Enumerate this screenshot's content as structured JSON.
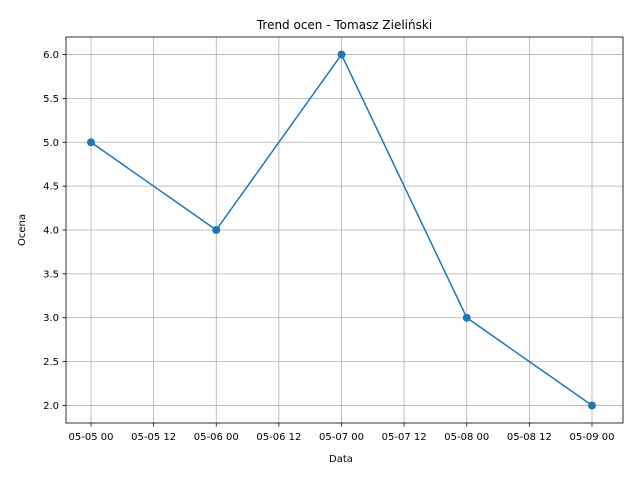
{
  "chart_data": {
    "type": "line",
    "title": "Trend ocen - Tomasz Zieliński",
    "xlabel": "Data",
    "ylabel": "Ocena",
    "x_tick_labels": [
      "05-05 00",
      "05-05 12",
      "05-06 00",
      "05-06 12",
      "05-07 00",
      "05-07 12",
      "05-08 00",
      "05-08 12",
      "05-09 00"
    ],
    "y_ticks": [
      2.0,
      2.5,
      3.0,
      3.5,
      4.0,
      4.5,
      5.0,
      5.5,
      6.0
    ],
    "y_tick_labels": [
      "2.0",
      "2.5",
      "3.0",
      "3.5",
      "4.0",
      "4.5",
      "5.0",
      "5.5",
      "6.0"
    ],
    "ylim": [
      1.8,
      6.2
    ],
    "grid": true,
    "series": [
      {
        "color": "#1f77b4",
        "marker": "circle",
        "x": [
          "05-05 00",
          "05-06 00",
          "05-07 00",
          "05-08 00",
          "05-09 00"
        ],
        "values": [
          5,
          4,
          6,
          3,
          2
        ]
      }
    ]
  }
}
